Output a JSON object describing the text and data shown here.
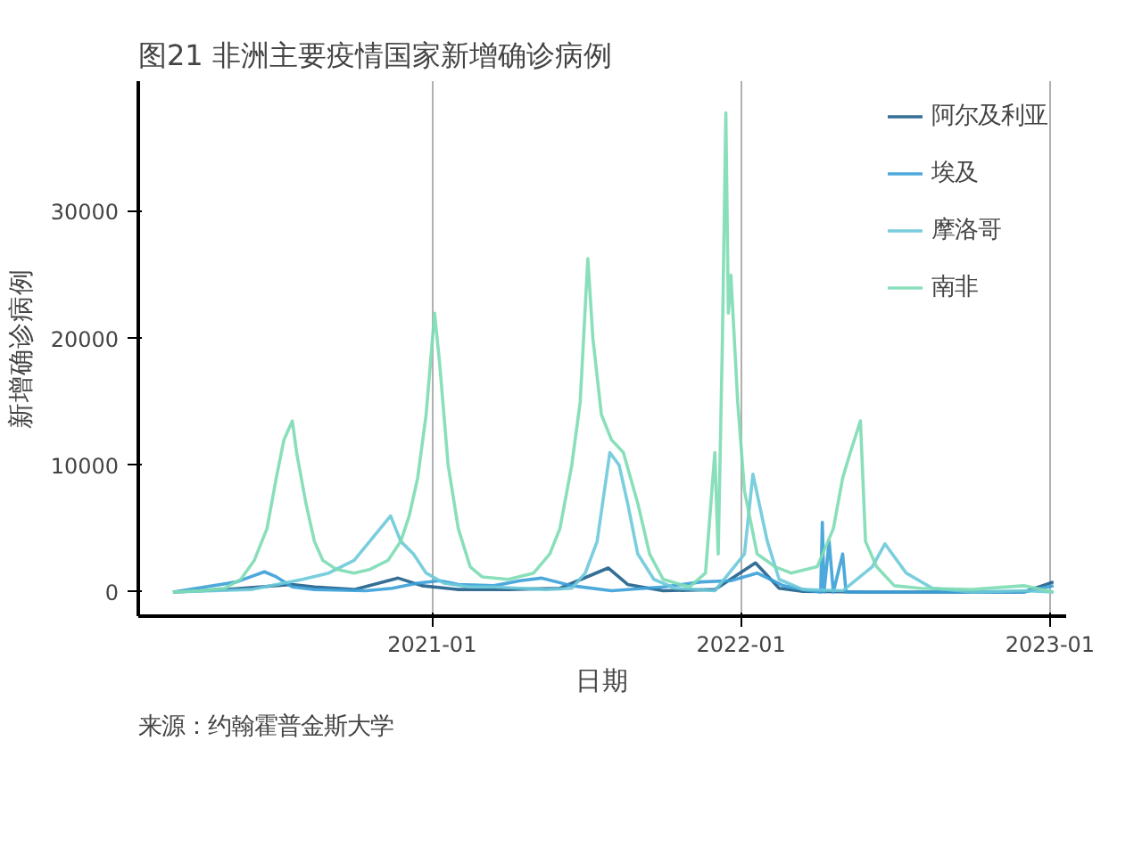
{
  "chart_data": {
    "type": "line",
    "title": "图21 非洲主要疫情国家新增确诊病例",
    "xlabel": "日期",
    "ylabel": "新增确诊病例",
    "annotations": [
      "来源：约翰霍普金斯大学"
    ],
    "xlim": [
      "2020-01-20",
      "2023-01-20"
    ],
    "xticks": [
      {
        "value": "2021-01-01",
        "label": "2021-01"
      },
      {
        "value": "2022-01-01",
        "label": "2022-01"
      },
      {
        "value": "2023-01-01",
        "label": "2023-01"
      }
    ],
    "ylim": [
      -1900,
      40300
    ],
    "yticks": [
      0,
      10000,
      20000,
      30000
    ],
    "grid": "x",
    "legend": "top right",
    "line_style": "solid",
    "series": [
      {
        "name": "阿尔及利亚",
        "color": "#1f5f8b",
        "x": [
          "2020-03-01",
          "2020-05-01",
          "2020-07-20",
          "2020-08-15",
          "2020-10-01",
          "2020-11-22",
          "2020-12-20",
          "2021-02-01",
          "2021-04-01",
          "2021-06-01",
          "2021-07-28",
          "2021-08-20",
          "2021-10-01",
          "2021-12-01",
          "2022-01-18",
          "2022-02-15",
          "2022-03-15",
          "2022-06-01",
          "2022-12-01",
          "2023-01-05"
        ],
        "values": [
          0,
          200,
          600,
          400,
          200,
          1100,
          500,
          200,
          200,
          300,
          1900,
          600,
          100,
          200,
          2300,
          300,
          50,
          0,
          0,
          800
        ]
      },
      {
        "name": "埃及",
        "color": "#3aa0d8",
        "x": [
          "2020-03-01",
          "2020-05-15",
          "2020-06-17",
          "2020-07-01",
          "2020-07-20",
          "2020-08-15",
          "2020-10-15",
          "2020-11-15",
          "2020-12-15",
          "2021-01-10",
          "2021-02-01",
          "2021-03-15",
          "2021-04-15",
          "2021-05-10",
          "2021-06-15",
          "2021-08-01",
          "2021-10-01",
          "2021-11-15",
          "2021-12-20",
          "2022-01-20",
          "2022-02-20",
          "2022-03-15",
          "2022-04-05",
          "2022-04-07",
          "2022-04-09",
          "2022-04-15",
          "2022-04-20",
          "2022-05-01",
          "2022-05-05",
          "2022-08-01",
          "2022-12-01",
          "2023-01-05"
        ],
        "values": [
          0,
          800,
          1600,
          1200,
          400,
          200,
          100,
          300,
          700,
          900,
          600,
          500,
          900,
          1100,
          500,
          100,
          400,
          800,
          900,
          1500,
          500,
          200,
          0,
          5500,
          0,
          4000,
          0,
          3000,
          0,
          0,
          0,
          500
        ]
      },
      {
        "name": "摩洛哥",
        "color": "#6cc9d9",
        "x": [
          "2020-03-01",
          "2020-06-01",
          "2020-08-01",
          "2020-09-01",
          "2020-10-01",
          "2020-11-13",
          "2020-11-25",
          "2020-12-10",
          "2020-12-25",
          "2021-01-15",
          "2021-02-15",
          "2021-03-15",
          "2021-04-15",
          "2021-05-15",
          "2021-06-15",
          "2021-07-01",
          "2021-07-15",
          "2021-07-30",
          "2021-08-10",
          "2021-08-20",
          "2021-09-01",
          "2021-09-20",
          "2021-10-15",
          "2021-12-01",
          "2022-01-05",
          "2022-01-15",
          "2022-02-01",
          "2022-02-15",
          "2022-03-15",
          "2022-05-01",
          "2022-06-05",
          "2022-06-20",
          "2022-07-15",
          "2022-08-15",
          "2022-10-01",
          "2022-12-01",
          "2023-01-05"
        ],
        "values": [
          0,
          200,
          1000,
          1500,
          2500,
          6000,
          4000,
          3000,
          1500,
          700,
          400,
          400,
          300,
          200,
          300,
          1500,
          4000,
          11000,
          10000,
          7000,
          3000,
          1000,
          300,
          100,
          3000,
          9300,
          4000,
          1000,
          200,
          100,
          2000,
          3800,
          1500,
          300,
          0,
          100,
          0
        ]
      },
      {
        "name": "南非",
        "color": "#7ddcb4",
        "x": [
          "2020-03-01",
          "2020-04-01",
          "2020-05-01",
          "2020-05-20",
          "2020-06-05",
          "2020-06-20",
          "2020-07-01",
          "2020-07-10",
          "2020-07-20",
          "2020-07-25",
          "2020-08-05",
          "2020-08-15",
          "2020-08-25",
          "2020-09-10",
          "2020-10-01",
          "2020-10-20",
          "2020-11-10",
          "2020-11-25",
          "2020-12-05",
          "2020-12-15",
          "2020-12-25",
          "2021-01-04",
          "2021-01-10",
          "2021-01-20",
          "2021-02-01",
          "2021-02-15",
          "2021-03-01",
          "2021-04-01",
          "2021-05-01",
          "2021-05-20",
          "2021-06-01",
          "2021-06-15",
          "2021-06-25",
          "2021-07-04",
          "2021-07-10",
          "2021-07-20",
          "2021-08-01",
          "2021-08-15",
          "2021-09-01",
          "2021-09-15",
          "2021-10-01",
          "2021-11-01",
          "2021-11-20",
          "2021-12-01",
          "2021-12-05",
          "2021-12-10",
          "2021-12-14",
          "2021-12-17",
          "2021-12-20",
          "2021-12-28",
          "2022-01-05",
          "2022-01-20",
          "2022-02-10",
          "2022-03-01",
          "2022-04-01",
          "2022-04-20",
          "2022-05-01",
          "2022-05-10",
          "2022-05-22",
          "2022-05-28",
          "2022-06-10",
          "2022-07-01",
          "2022-08-01",
          "2022-10-01",
          "2022-12-01",
          "2023-01-05"
        ],
        "values": [
          0,
          100,
          300,
          1000,
          2500,
          5000,
          9000,
          12000,
          13500,
          11000,
          7000,
          4000,
          2500,
          1800,
          1500,
          1800,
          2500,
          4000,
          6000,
          9000,
          14000,
          22000,
          18000,
          10000,
          5000,
          2000,
          1200,
          1000,
          1500,
          3000,
          5000,
          10000,
          15000,
          26300,
          20000,
          14000,
          12000,
          11000,
          7000,
          3000,
          1000,
          400,
          1500,
          11000,
          3000,
          20000,
          37800,
          22000,
          25000,
          15000,
          8000,
          3000,
          2000,
          1500,
          2000,
          5000,
          9000,
          11000,
          13500,
          4000,
          2000,
          500,
          300,
          200,
          500,
          0
        ]
      }
    ]
  }
}
